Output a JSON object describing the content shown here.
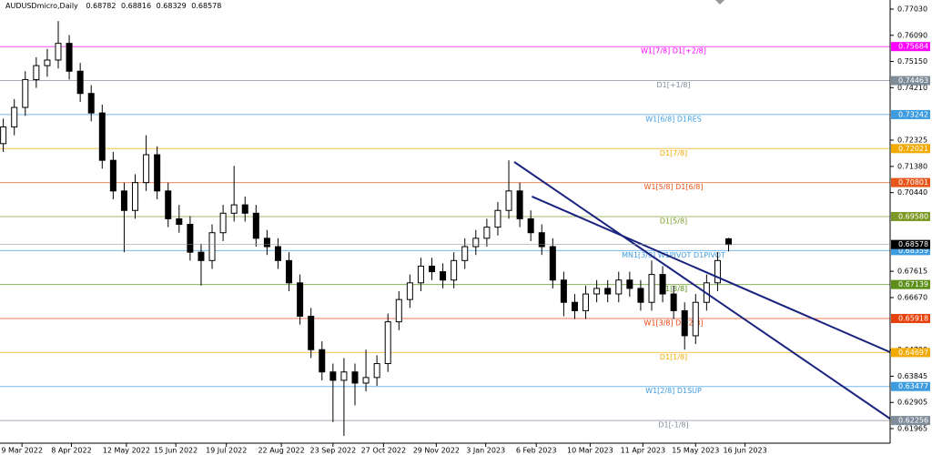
{
  "chart_data": {
    "type": "candlestick",
    "title": "AUDUSDmicro,Daily",
    "x": [
      0,
      1,
      2,
      3,
      4,
      5,
      6,
      7,
      8,
      9,
      10,
      11,
      12,
      13,
      14,
      15,
      16,
      17,
      18,
      19,
      20,
      21,
      22,
      23,
      24,
      25,
      26,
      27,
      28,
      29,
      30,
      31,
      32,
      33,
      34,
      35,
      36,
      37,
      38,
      39,
      40,
      41,
      42,
      43,
      44,
      45,
      46,
      47,
      48,
      49,
      50,
      51,
      52,
      53,
      54,
      55,
      56,
      57,
      58,
      59,
      60,
      61,
      62,
      63,
      64,
      65,
      66
    ],
    "open": [
      0.722,
      0.728,
      0.735,
      0.745,
      0.75,
      0.752,
      0.758,
      0.748,
      0.74,
      0.733,
      0.716,
      0.705,
      0.698,
      0.708,
      0.718,
      0.705,
      0.695,
      0.693,
      0.683,
      0.68,
      0.69,
      0.697,
      0.7,
      0.697,
      0.688,
      0.685,
      0.68,
      0.672,
      0.66,
      0.648,
      0.64,
      0.637,
      0.64,
      0.636,
      0.638,
      0.643,
      0.658,
      0.666,
      0.672,
      0.678,
      0.676,
      0.673,
      0.68,
      0.685,
      0.688,
      0.692,
      0.698,
      0.705,
      0.695,
      0.69,
      0.685,
      0.673,
      0.665,
      0.662,
      0.668,
      0.67,
      0.668,
      0.673,
      0.67,
      0.665,
      0.675,
      0.668,
      0.662,
      0.653,
      0.665,
      0.672,
      0.68782
    ],
    "high": [
      0.731,
      0.738,
      0.748,
      0.753,
      0.756,
      0.766,
      0.761,
      0.751,
      0.743,
      0.736,
      0.719,
      0.708,
      0.711,
      0.725,
      0.721,
      0.708,
      0.7,
      0.696,
      0.686,
      0.693,
      0.7,
      0.714,
      0.703,
      0.7,
      0.691,
      0.688,
      0.683,
      0.675,
      0.663,
      0.651,
      0.643,
      0.645,
      0.643,
      0.648,
      0.646,
      0.661,
      0.669,
      0.675,
      0.681,
      0.681,
      0.679,
      0.683,
      0.688,
      0.691,
      0.695,
      0.701,
      0.716,
      0.708,
      0.698,
      0.693,
      0.688,
      0.676,
      0.668,
      0.671,
      0.673,
      0.673,
      0.676,
      0.676,
      0.673,
      0.68,
      0.678,
      0.671,
      0.665,
      0.668,
      0.675,
      0.683,
      0.68816
    ],
    "low": [
      0.719,
      0.725,
      0.732,
      0.742,
      0.746,
      0.749,
      0.745,
      0.737,
      0.73,
      0.713,
      0.702,
      0.683,
      0.695,
      0.705,
      0.702,
      0.692,
      0.69,
      0.68,
      0.671,
      0.677,
      0.687,
      0.694,
      0.694,
      0.685,
      0.682,
      0.677,
      0.669,
      0.657,
      0.645,
      0.637,
      0.622,
      0.617,
      0.628,
      0.633,
      0.635,
      0.64,
      0.655,
      0.663,
      0.669,
      0.673,
      0.67,
      0.67,
      0.677,
      0.682,
      0.685,
      0.689,
      0.695,
      0.692,
      0.687,
      0.682,
      0.67,
      0.66,
      0.659,
      0.659,
      0.665,
      0.665,
      0.665,
      0.667,
      0.662,
      0.662,
      0.665,
      0.659,
      0.648,
      0.65,
      0.662,
      0.669,
      0.68329
    ],
    "close": [
      0.728,
      0.735,
      0.745,
      0.75,
      0.752,
      0.758,
      0.748,
      0.74,
      0.733,
      0.716,
      0.705,
      0.698,
      0.708,
      0.718,
      0.705,
      0.695,
      0.693,
      0.683,
      0.68,
      0.69,
      0.697,
      0.7,
      0.697,
      0.688,
      0.685,
      0.68,
      0.672,
      0.66,
      0.648,
      0.64,
      0.637,
      0.64,
      0.636,
      0.638,
      0.643,
      0.658,
      0.666,
      0.672,
      0.678,
      0.676,
      0.673,
      0.68,
      0.685,
      0.688,
      0.692,
      0.698,
      0.705,
      0.695,
      0.69,
      0.685,
      0.673,
      0.665,
      0.662,
      0.668,
      0.67,
      0.668,
      0.673,
      0.67,
      0.665,
      0.675,
      0.668,
      0.662,
      0.653,
      0.665,
      0.672,
      0.68,
      0.68578
    ],
    "xlim": [
      -0.3,
      80.7
    ],
    "ylim": [
      0.61442,
      0.77357
    ],
    "xticks": [
      {
        "value": 1.7,
        "label": "9 Mar 2022"
      },
      {
        "value": 6.2,
        "label": "8 Apr 2022"
      },
      {
        "value": 11.2,
        "label": "12 May 2022"
      },
      {
        "value": 15.7,
        "label": "15 Jun 2022"
      },
      {
        "value": 20.3,
        "label": "19 Jul 2022"
      },
      {
        "value": 25.3,
        "label": "22 Aug 2022"
      },
      {
        "value": 30.0,
        "label": "23 Sep 2022"
      },
      {
        "value": 34.6,
        "label": "27 Oct 2022"
      },
      {
        "value": 39.4,
        "label": "29 Nov 2022"
      },
      {
        "value": 43.9,
        "label": "3 Jan 2023"
      },
      {
        "value": 48.5,
        "label": "6 Feb 2023"
      },
      {
        "value": 53.4,
        "label": "10 Mar 2023"
      },
      {
        "value": 58.2,
        "label": "11 Apr 2023"
      },
      {
        "value": 63.0,
        "label": "15 May 2023"
      },
      {
        "value": 67.5,
        "label": "16 Jun 2023"
      }
    ],
    "yticks": [
      {
        "value": 0.7703,
        "label": "0.77030"
      },
      {
        "value": 0.7609,
        "label": "0.76090"
      },
      {
        "value": 0.7515,
        "label": "0.75150"
      },
      {
        "value": 0.7421,
        "label": "0.74210"
      },
      0.72325,
      {
        "value": 0.7138,
        "label": "0.71380"
      },
      {
        "value": 0.7044,
        "label": "0.70440"
      },
      0.67615,
      {
        "value": 0.6667,
        "label": "0.66670"
      },
      {
        "value": 0.6479,
        "label": "0.64790"
      },
      0.63845,
      0.62905,
      0.61965
    ],
    "levels": {
      "names": [
        "W1[7/8] D1[+2/8]",
        "D1[+1/8]",
        "W1[6/8] D1RES",
        "D1[7/8]",
        "W1[5/8] D1[6/8]",
        "D1[5/8]",
        "MN1[3/8] W1PIVOT D1PIVOT",
        "D1[3/8]",
        "W1[3/8] D1[2/8]",
        "D1[1/8]",
        "W1[2/8] D1SUP",
        "D1[-1/8]"
      ],
      "values": [
        0.75684,
        0.74463,
        0.73242,
        0.72021,
        0.70801,
        0.6958,
        0.68359,
        0.67139,
        0.65918,
        0.64697,
        0.63477,
        0.62256
      ],
      "value_labels": [
        "0.75684",
        "0.74463",
        "0.73242",
        "0.72021",
        "0.70801",
        "0.69580",
        "0.68359",
        "0.67139",
        "0.65918",
        "0.64697",
        "0.63477",
        "0.62256"
      ],
      "colors": [
        "#ff00ff",
        "#7f8c99",
        "#3d9be0",
        "#f2a900",
        "#e8561a",
        "#7b9a25",
        "#3d9be0",
        "#5b8f1a",
        "#e8400a",
        "#f2a900",
        "#3d9be0",
        "#7f8c99"
      ]
    },
    "trendlines": [
      {
        "x": [
          46.5,
          80.7
        ],
        "y": [
          0.7154,
          0.6232
        ]
      },
      {
        "x": [
          48.1,
          80.7
        ],
        "y": [
          0.703,
          0.6471
        ]
      }
    ],
    "trendline_color": "#1a237e",
    "candle_color": "#000000"
  }
}
